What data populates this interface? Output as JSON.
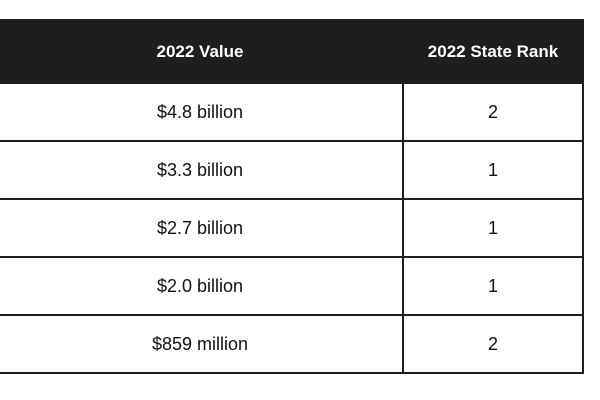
{
  "table": {
    "headers": [
      "2022 Value",
      "2022 State Rank"
    ],
    "rows": [
      [
        "$4.8 billion",
        "2"
      ],
      [
        "$3.3 billion",
        "1"
      ],
      [
        "$2.7 billion",
        "1"
      ],
      [
        "$2.0 billion",
        "1"
      ],
      [
        "$859 million",
        "2"
      ]
    ]
  },
  "colors": {
    "header_bg": "#1e1e1e",
    "header_text": "#ffffff",
    "border": "#1e1e1e",
    "cell_text": "#111111"
  }
}
